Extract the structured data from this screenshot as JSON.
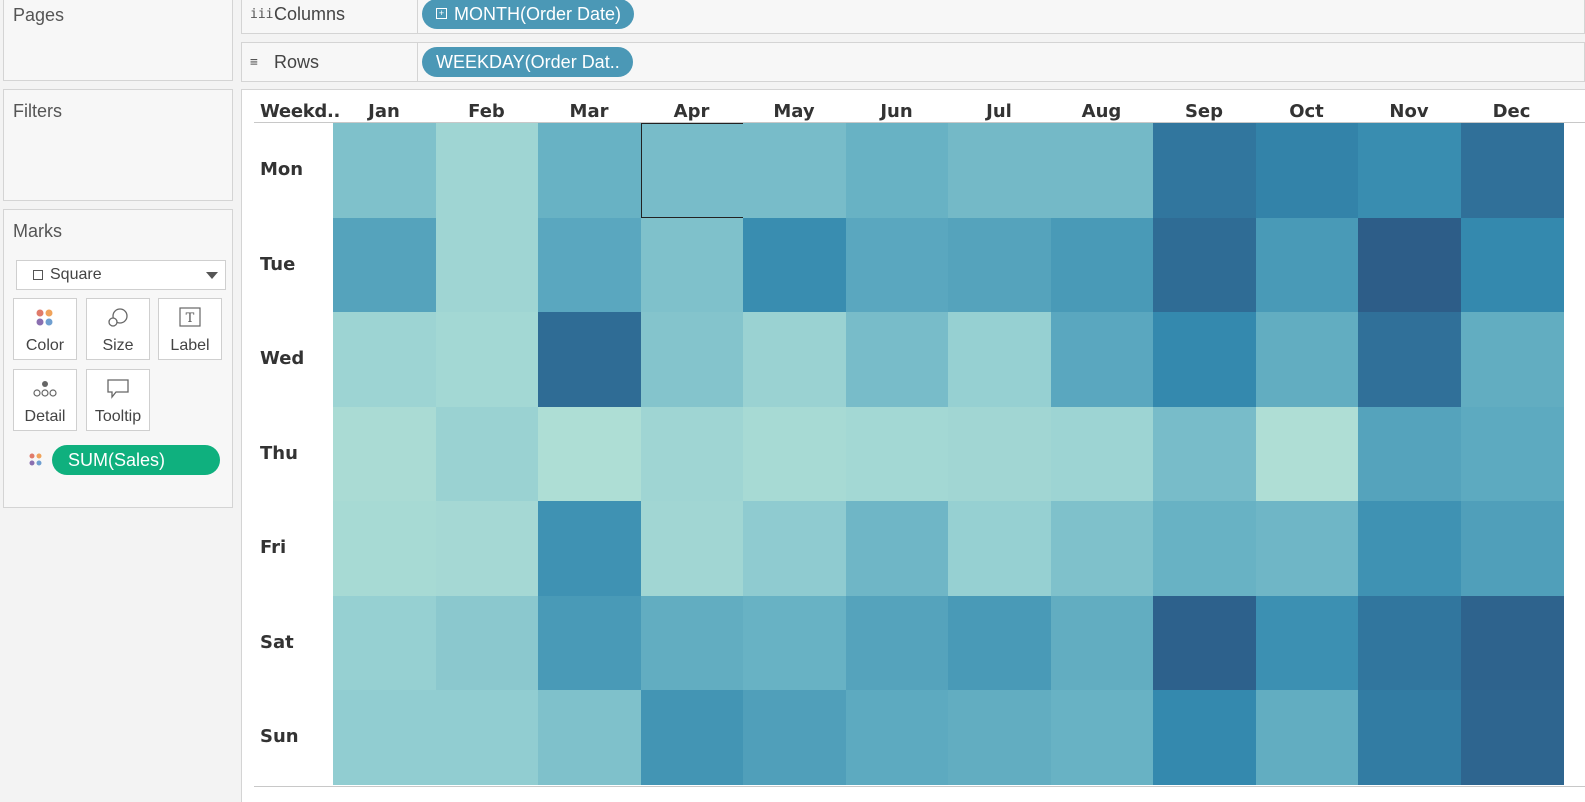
{
  "sidebar": {
    "pages_title": "Pages",
    "filters_title": "Filters",
    "marks_title": "Marks",
    "mark_type": "Square",
    "buttons": [
      {
        "label": "Color",
        "icon": "color-dots-icon"
      },
      {
        "label": "Size",
        "icon": "size-circles-icon"
      },
      {
        "label": "Label",
        "icon": "label-t-icon"
      },
      {
        "label": "Detail",
        "icon": "detail-dots-icon"
      },
      {
        "label": "Tooltip",
        "icon": "tooltip-speech-icon"
      }
    ],
    "color_field": "SUM(Sales)"
  },
  "shelves": {
    "columns_label": "Columns",
    "columns_pill": "MONTH(Order Date)",
    "rows_label": "Rows",
    "rows_pill": "WEEKDAY(Order Dat.."
  },
  "colors": {
    "pill_blue": "#4b98b6",
    "pill_green": "#0fb07e",
    "palette_low": "#b7e3d6",
    "palette_high": "#2c5985"
  },
  "chart_data": {
    "type": "heatmap",
    "row_header_label": "Weekd..",
    "x_categories": [
      "Jan",
      "Feb",
      "Mar",
      "Apr",
      "May",
      "Jun",
      "Jul",
      "Aug",
      "Sep",
      "Oct",
      "Nov",
      "Dec"
    ],
    "y_categories": [
      "Mon",
      "Tue",
      "Wed",
      "Thu",
      "Fri",
      "Sat",
      "Sun"
    ],
    "value_scale": "relative intensity of SUM(Sales), 0 = lowest (light teal), 1 = highest (dark blue)",
    "values": [
      [
        0.35,
        0.18,
        0.45,
        0.38,
        0.38,
        0.45,
        0.4,
        0.4,
        0.85,
        0.78,
        0.72,
        0.88
      ],
      [
        0.55,
        0.18,
        0.52,
        0.35,
        0.72,
        0.52,
        0.55,
        0.62,
        0.9,
        0.62,
        0.98,
        0.75
      ],
      [
        0.2,
        0.15,
        0.9,
        0.33,
        0.22,
        0.38,
        0.25,
        0.52,
        0.75,
        0.48,
        0.88,
        0.48
      ],
      [
        0.1,
        0.22,
        0.07,
        0.18,
        0.12,
        0.15,
        0.17,
        0.2,
        0.38,
        0.06,
        0.55,
        0.5
      ],
      [
        0.12,
        0.14,
        0.68,
        0.17,
        0.28,
        0.42,
        0.25,
        0.35,
        0.45,
        0.42,
        0.68,
        0.58
      ],
      [
        0.25,
        0.3,
        0.62,
        0.48,
        0.45,
        0.55,
        0.62,
        0.48,
        0.96,
        0.7,
        0.85,
        0.95
      ],
      [
        0.27,
        0.27,
        0.35,
        0.66,
        0.58,
        0.5,
        0.48,
        0.45,
        0.75,
        0.48,
        0.82,
        0.94
      ]
    ],
    "selected_cell": {
      "row": "Mon",
      "column": "Apr"
    }
  }
}
